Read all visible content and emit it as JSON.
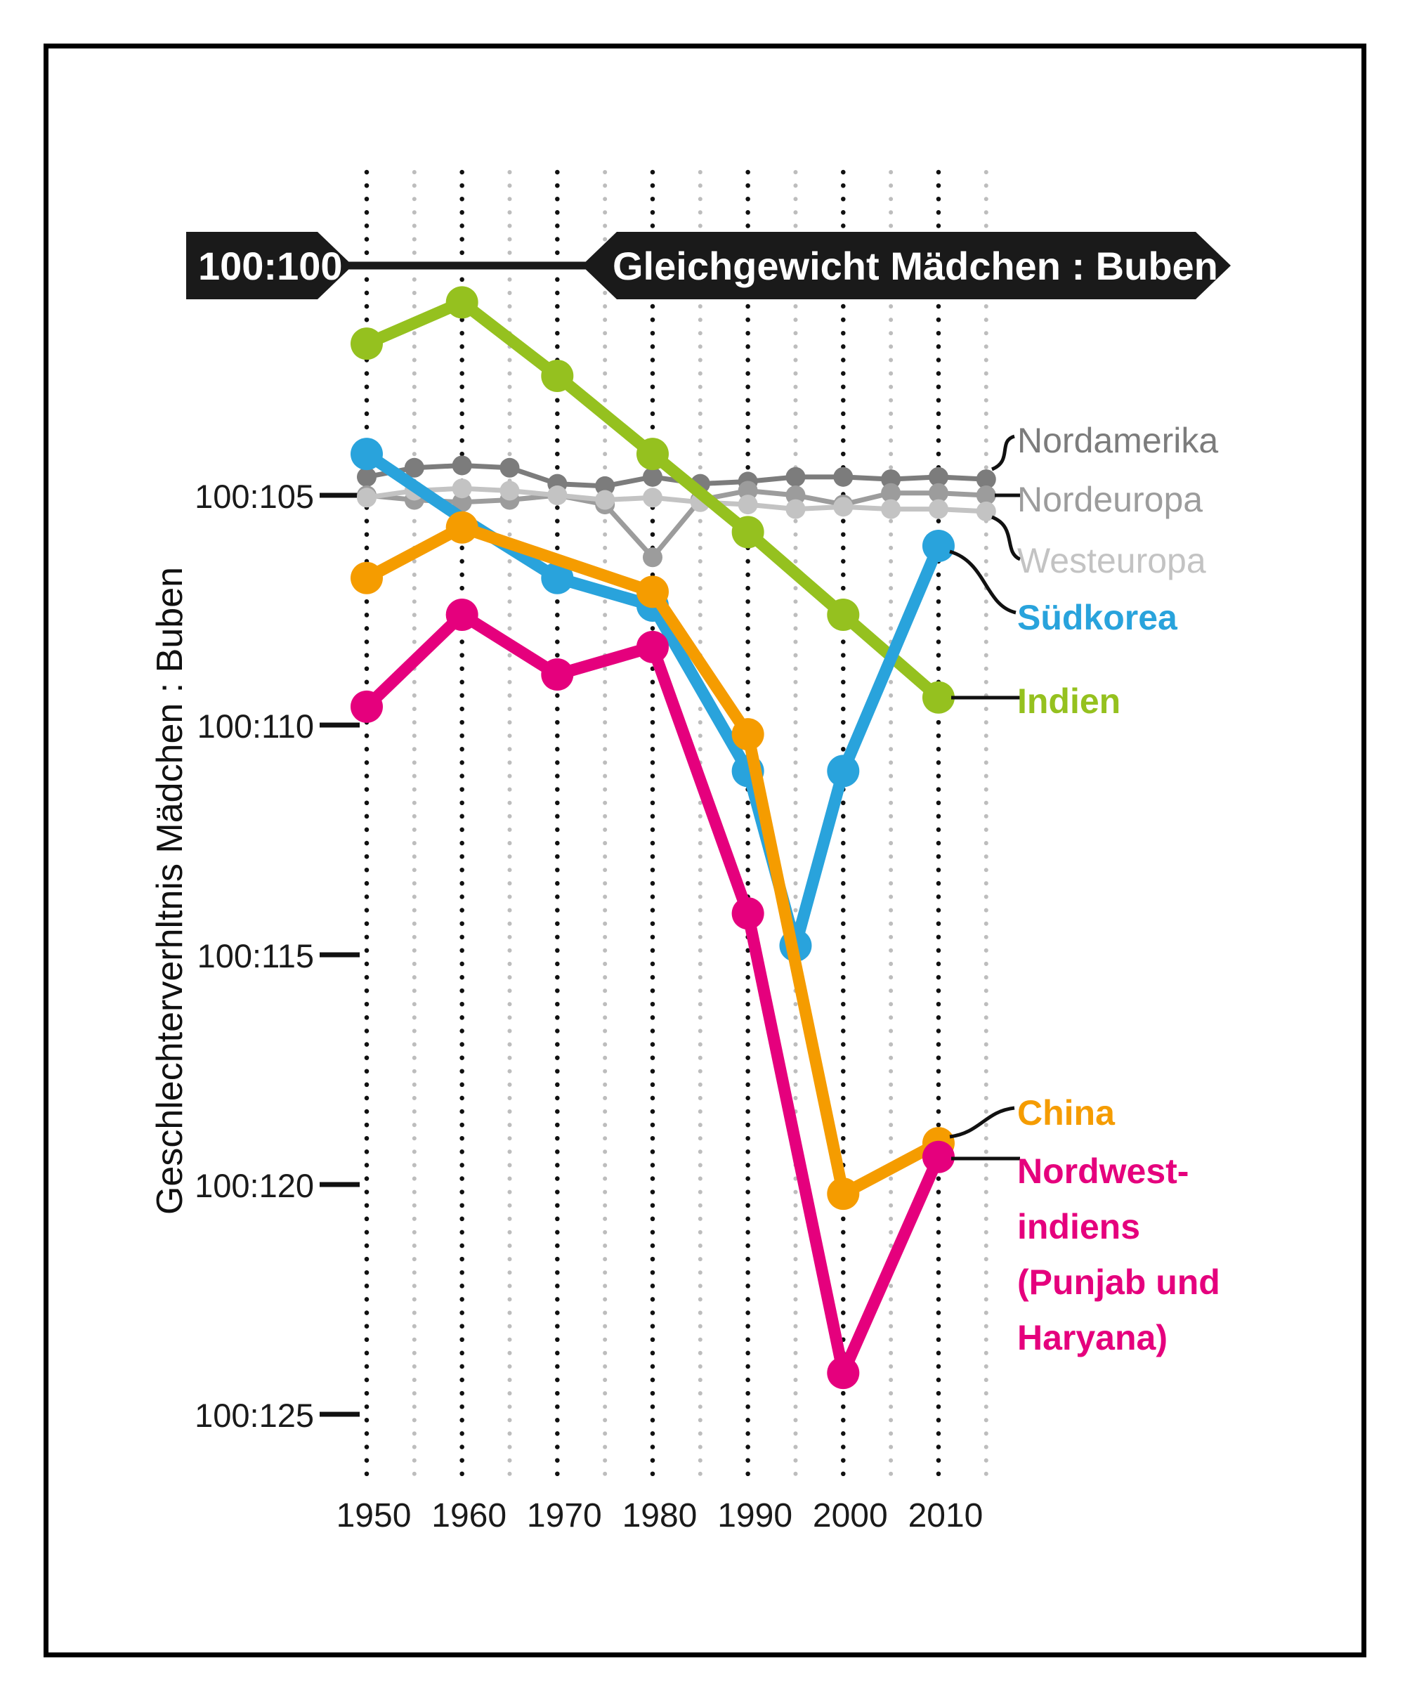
{
  "banner": {
    "tag_label": "100:100",
    "main_label": "Gleichgewicht Mädchen : Buben"
  },
  "axis": {
    "y_title": "Geschlechterverhltnis Mädchen : Buben",
    "y_ticks": [
      {
        "label": "100:105",
        "value": 105
      },
      {
        "label": "100:110",
        "value": 110
      },
      {
        "label": "100:115",
        "value": 115
      },
      {
        "label": "100:120",
        "value": 120
      },
      {
        "label": "100:125",
        "value": 125
      }
    ],
    "x_ticks": [
      {
        "label": "1950",
        "year": 1950
      },
      {
        "label": "1960",
        "year": 1960
      },
      {
        "label": "1970",
        "year": 1970
      },
      {
        "label": "1980",
        "year": 1980
      },
      {
        "label": "1990",
        "year": 1990
      },
      {
        "label": "2000",
        "year": 2000
      },
      {
        "label": "2010",
        "year": 2010
      }
    ]
  },
  "chart_data": {
    "type": "line",
    "title": "",
    "xlabel": "",
    "ylabel": "Geschlechterverhltnis Mädchen : Buben",
    "x_range": [
      1950,
      2015
    ],
    "y_range_ratio_girls_to_boys": [
      100,
      126
    ],
    "y_axis_inverted": true,
    "grid": {
      "major_years": [
        1950,
        1960,
        1970,
        1980,
        1990,
        2000,
        2010
      ],
      "minor_years": [
        1955,
        1965,
        1975,
        1985,
        1995,
        2005,
        2015
      ]
    },
    "reference_line": {
      "value": 100,
      "label_left": "100:100",
      "label_right": "Gleichgewicht Mädchen : Buben"
    },
    "series": [
      {
        "id": "nordamerika",
        "legend_label": "Nordamerika",
        "color": "#7c7c7c",
        "line_width": 7,
        "marker_radius": 14,
        "no_marker_years": [],
        "points": [
          [
            1950,
            104.6
          ],
          [
            1955,
            104.4
          ],
          [
            1960,
            104.35
          ],
          [
            1965,
            104.4
          ],
          [
            1970,
            104.75
          ],
          [
            1975,
            104.8
          ],
          [
            1980,
            104.6
          ],
          [
            1985,
            104.75
          ],
          [
            1990,
            104.7
          ],
          [
            1995,
            104.6
          ],
          [
            2000,
            104.6
          ],
          [
            2005,
            104.65
          ],
          [
            2010,
            104.6
          ],
          [
            2015,
            104.65
          ]
        ]
      },
      {
        "id": "nordeuropa",
        "legend_label": "Nordeuropa",
        "color": "#9c9c9c",
        "line_width": 7,
        "marker_radius": 14,
        "no_marker_years": [],
        "points": [
          [
            1950,
            105.0
          ],
          [
            1955,
            105.1
          ],
          [
            1960,
            105.15
          ],
          [
            1965,
            105.1
          ],
          [
            1970,
            105.0
          ],
          [
            1975,
            105.2
          ],
          [
            1980,
            106.35
          ],
          [
            1985,
            105.1
          ],
          [
            1990,
            104.9
          ],
          [
            1995,
            105.0
          ],
          [
            2000,
            105.2
          ],
          [
            2005,
            104.95
          ],
          [
            2010,
            104.95
          ],
          [
            2015,
            105.0
          ]
        ]
      },
      {
        "id": "westeuropa",
        "legend_label": "Westeuropa",
        "color": "#c3c3c3",
        "line_width": 7,
        "marker_radius": 14,
        "no_marker_years": [],
        "points": [
          [
            1950,
            105.05
          ],
          [
            1955,
            104.9
          ],
          [
            1960,
            104.85
          ],
          [
            1965,
            104.9
          ],
          [
            1970,
            105.0
          ],
          [
            1975,
            105.1
          ],
          [
            1980,
            105.05
          ],
          [
            1985,
            105.15
          ],
          [
            1990,
            105.2
          ],
          [
            1995,
            105.3
          ],
          [
            2000,
            105.25
          ],
          [
            2005,
            105.3
          ],
          [
            2010,
            105.3
          ],
          [
            2015,
            105.35
          ]
        ]
      },
      {
        "id": "indien",
        "legend_label": "Indien",
        "color": "#95c11f",
        "line_width": 17,
        "marker_radius": 23,
        "no_marker_years": [],
        "points": [
          [
            1950,
            101.7
          ],
          [
            1960,
            100.8
          ],
          [
            1970,
            102.4
          ],
          [
            1980,
            104.1
          ],
          [
            1990,
            105.8
          ],
          [
            2000,
            107.6
          ],
          [
            2010,
            109.4
          ]
        ]
      },
      {
        "id": "suedkorea",
        "legend_label": "Südkorea",
        "color": "#29a3dc",
        "line_width": 17,
        "marker_radius": 23,
        "no_marker_years": [
          1960
        ],
        "points": [
          [
            1950,
            104.1
          ],
          [
            1960,
            105.5
          ],
          [
            1970,
            106.8
          ],
          [
            1980,
            107.4
          ],
          [
            1990,
            111.0
          ],
          [
            1995,
            114.8
          ],
          [
            2000,
            111.0
          ],
          [
            2010,
            106.1
          ]
        ]
      },
      {
        "id": "china",
        "legend_label": "China",
        "color": "#f59c00",
        "line_width": 17,
        "marker_radius": 23,
        "no_marker_years": [
          1970
        ],
        "points": [
          [
            1950,
            106.8
          ],
          [
            1960,
            105.7
          ],
          [
            1970,
            106.4
          ],
          [
            1980,
            107.1
          ],
          [
            1990,
            110.2
          ],
          [
            2000,
            120.2
          ],
          [
            2010,
            119.1
          ]
        ]
      },
      {
        "id": "nordwestindien",
        "legend_label": "Nordwest-\nindiens\n(Punjab und\nHaryana)",
        "color": "#e5007d",
        "line_width": 17,
        "marker_radius": 23,
        "no_marker_years": [],
        "points": [
          [
            1950,
            109.6
          ],
          [
            1960,
            107.6
          ],
          [
            1970,
            108.9
          ],
          [
            1980,
            108.3
          ],
          [
            1990,
            114.1
          ],
          [
            2000,
            124.1
          ],
          [
            2010,
            119.4
          ]
        ]
      }
    ],
    "legend_position": "right"
  }
}
